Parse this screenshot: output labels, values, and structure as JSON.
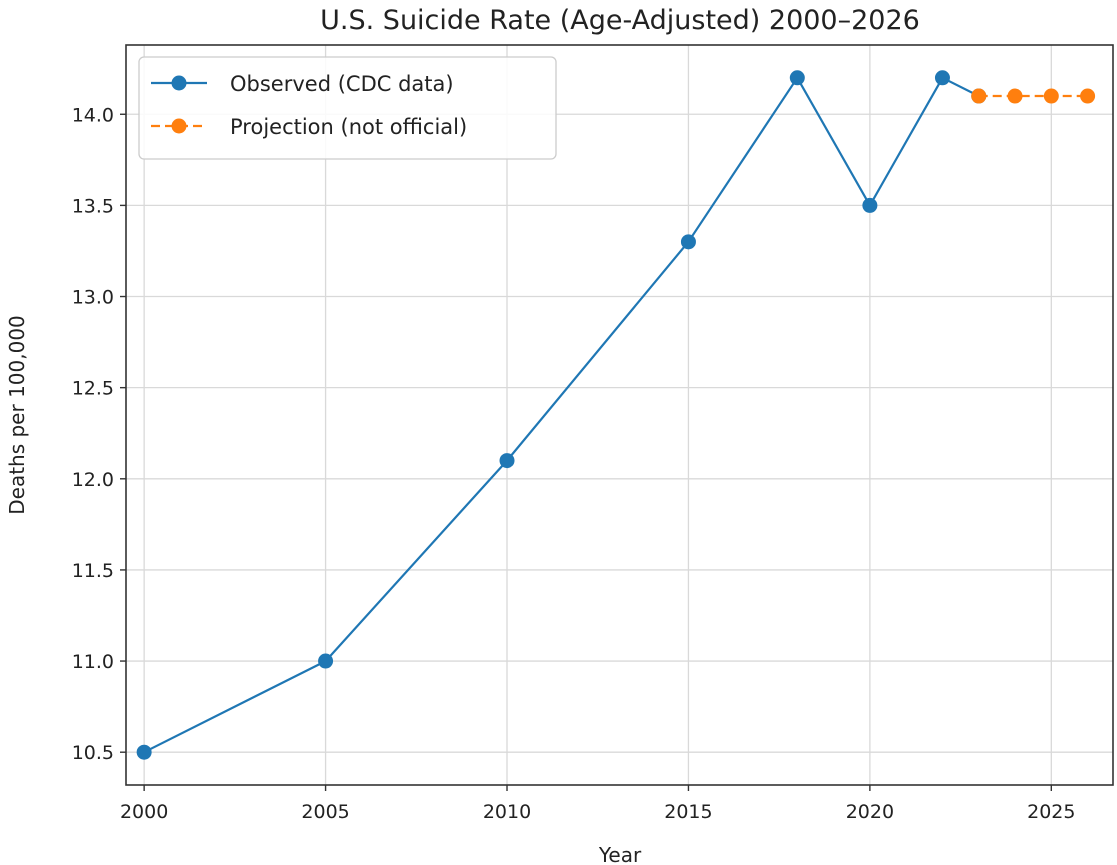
{
  "chart_data": {
    "type": "line",
    "title": "U.S. Suicide Rate (Age-Adjusted) 2000–2026",
    "xlabel": "Year",
    "ylabel": "Deaths per 100,000",
    "xlim": [
      1999.5,
      2026.7
    ],
    "ylim": [
      10.32,
      14.38
    ],
    "x_ticks": [
      2000,
      2005,
      2010,
      2015,
      2020,
      2025
    ],
    "x_tick_labels": [
      "2000",
      "2005",
      "2010",
      "2015",
      "2020",
      "2025"
    ],
    "y_ticks": [
      10.5,
      11.0,
      11.5,
      12.0,
      12.5,
      13.0,
      13.5,
      14.0
    ],
    "y_tick_labels": [
      "10.5",
      "11.0",
      "11.5",
      "12.0",
      "12.5",
      "13.0",
      "13.5",
      "14.0"
    ],
    "grid": true,
    "legend_position": "top-left",
    "series": [
      {
        "name": "Observed (CDC data)",
        "color": "#1f77b4",
        "style": "solid",
        "x": [
          2000,
          2005,
          2010,
          2015,
          2018,
          2020,
          2022,
          2023
        ],
        "y": [
          10.5,
          11.0,
          12.1,
          13.3,
          14.2,
          13.5,
          14.2,
          14.1
        ]
      },
      {
        "name": "Projection (not official)",
        "color": "#ff7f0e",
        "style": "dashed",
        "x": [
          2023,
          2024,
          2025,
          2026
        ],
        "y": [
          14.1,
          14.1,
          14.1,
          14.1
        ]
      }
    ]
  }
}
